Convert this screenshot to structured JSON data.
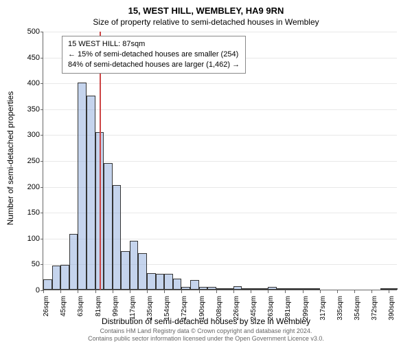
{
  "chart": {
    "type": "histogram",
    "title": "15, WEST HILL, WEMBLEY, HA9 9RN",
    "subtitle": "Size of property relative to semi-detached houses in Wembley",
    "ylabel": "Number of semi-detached properties",
    "xlabel": "Distribution of semi-detached houses by size in Wembley",
    "ylim": [
      0,
      500
    ],
    "ytick_step": 50,
    "xtick_labels": [
      "26sqm",
      "45sqm",
      "63sqm",
      "81sqm",
      "99sqm",
      "117sqm",
      "135sqm",
      "154sqm",
      "172sqm",
      "190sqm",
      "208sqm",
      "226sqm",
      "245sqm",
      "263sqm",
      "281sqm",
      "299sqm",
      "317sqm",
      "335sqm",
      "354sqm",
      "372sqm",
      "390sqm"
    ],
    "bar_values": [
      20,
      46,
      48,
      108,
      400,
      375,
      305,
      245,
      202,
      75,
      94,
      70,
      32,
      30,
      30,
      21,
      6,
      18,
      6,
      6,
      2,
      3,
      7,
      1,
      3,
      1,
      6,
      1,
      1,
      1,
      1,
      1,
      0,
      0,
      0,
      0,
      0,
      0,
      0,
      1,
      1
    ],
    "bar_fill": "rgba(140, 170, 220, 0.5)",
    "bar_border": "#333333",
    "marker_line_color": "#cc4444",
    "marker_bin_index": 6,
    "background_color": "#ffffff",
    "grid_color": "#e8e8e8",
    "axis_color": "#666666",
    "title_fontsize": 13,
    "subtitle_fontsize": 12,
    "label_fontsize": 12,
    "tick_fontsize": 11
  },
  "info_box": {
    "line1": "15 WEST HILL: 87sqm",
    "line2": "← 15% of semi-detached houses are smaller (254)",
    "line3": "84% of semi-detached houses are larger (1,462) →"
  },
  "footer": {
    "line1": "Contains HM Land Registry data © Crown copyright and database right 2024.",
    "line2": "Contains public sector information licensed under the Open Government Licence v3.0."
  }
}
